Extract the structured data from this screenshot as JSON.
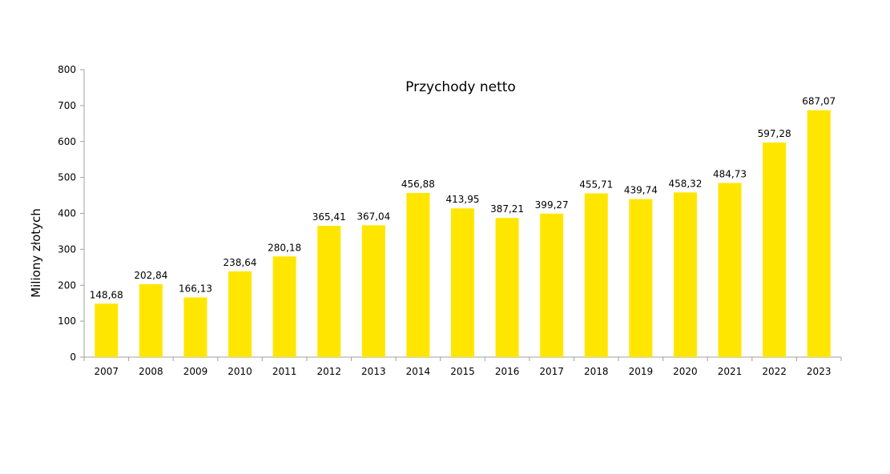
{
  "chart_data": {
    "type": "bar",
    "title": "Przychody netto",
    "xlabel": "",
    "ylabel": "Miliony złotych",
    "ylim": [
      0,
      800
    ],
    "yticks": [
      0,
      100,
      200,
      300,
      400,
      500,
      600,
      700,
      800
    ],
    "grid": false,
    "legend": "none",
    "bar_color": "#ffe600",
    "categories": [
      "2007",
      "2008",
      "2009",
      "2010",
      "2011",
      "2012",
      "2013",
      "2014",
      "2015",
      "2016",
      "2017",
      "2018",
      "2019",
      "2020",
      "2021",
      "2022",
      "2023"
    ],
    "values": [
      148.68,
      202.84,
      166.13,
      238.64,
      280.18,
      365.41,
      367.04,
      456.88,
      413.95,
      387.21,
      399.27,
      455.71,
      439.74,
      458.32,
      484.73,
      597.28,
      687.07
    ],
    "value_labels": [
      "148,68",
      "202,84",
      "166,13",
      "238,64",
      "280,18",
      "365,41",
      "367,04",
      "456,88",
      "413,95",
      "387,21",
      "399,27",
      "455,71",
      "439,74",
      "458,32",
      "484,73",
      "597,28",
      "687,07"
    ]
  }
}
